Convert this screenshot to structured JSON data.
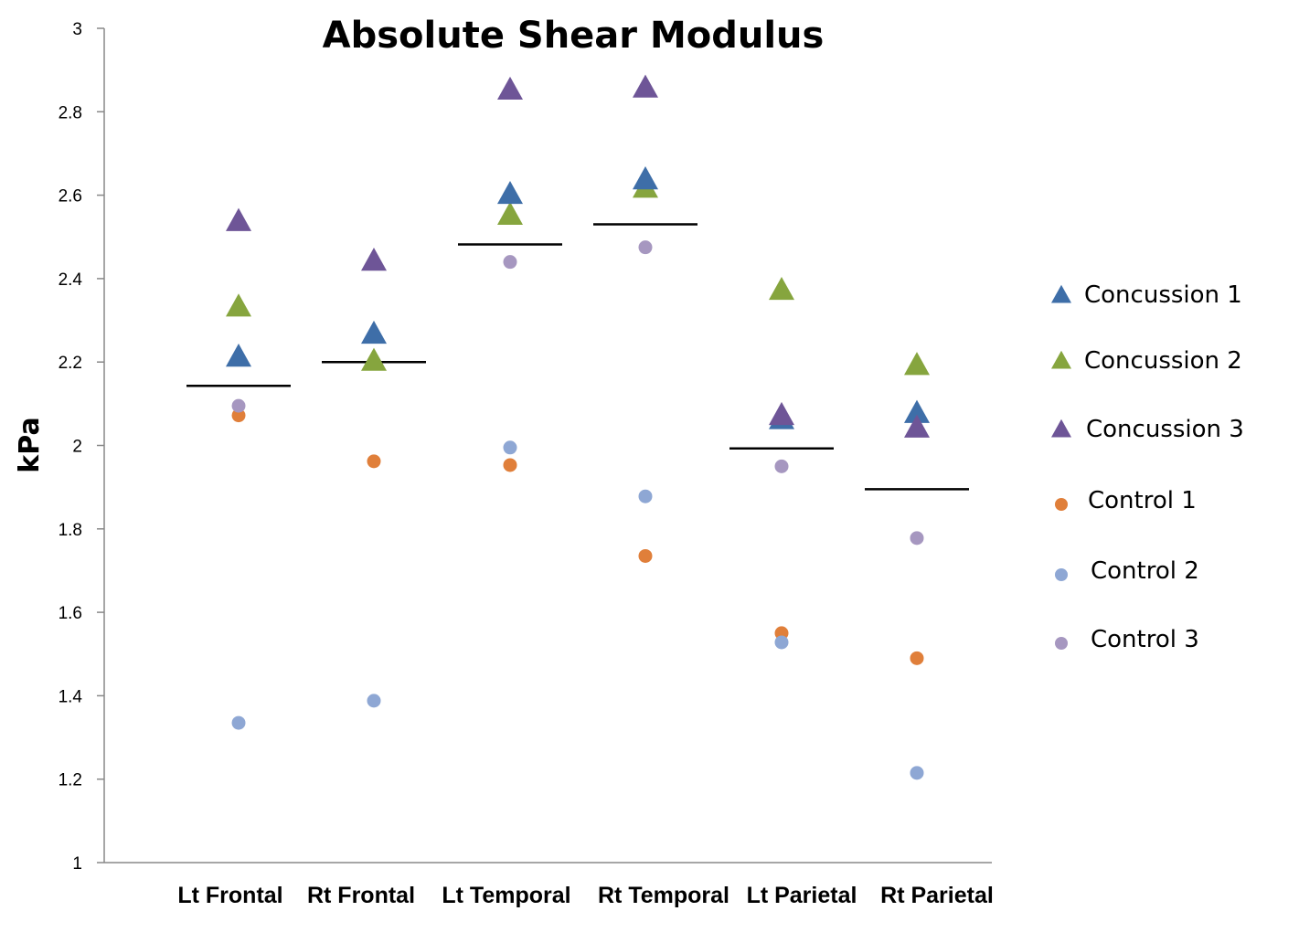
{
  "chart_data": {
    "type": "scatter",
    "title": "Absolute Shear Modulus",
    "ylabel": "kPa",
    "xlabel": "",
    "ylim": [
      1,
      3
    ],
    "y_ticks": [
      "1",
      "1.2",
      "1.4",
      "1.6",
      "1.8",
      "2",
      "2.2",
      "2.4",
      "2.6",
      "2.8",
      "3"
    ],
    "categories": [
      "Lt Frontal",
      "Rt Frontal",
      "Lt Temporal",
      "Rt Temporal",
      "Lt Parietal",
      "Rt Parietal"
    ],
    "grid": false,
    "legend_position": "right",
    "series": [
      {
        "name": "Concussion 1",
        "marker": "triangle",
        "color": "#3E6EA8",
        "values": [
          2.21,
          2.265,
          2.6,
          2.635,
          2.06,
          2.075
        ]
      },
      {
        "name": "Concussion 2",
        "marker": "triangle",
        "color": "#86A53E",
        "values": [
          2.33,
          2.2,
          2.55,
          2.615,
          2.37,
          2.19
        ]
      },
      {
        "name": "Concussion 3",
        "marker": "triangle",
        "color": "#6E5597",
        "values": [
          2.535,
          2.44,
          2.85,
          2.855,
          2.07,
          2.04
        ]
      },
      {
        "name": "Control 1",
        "marker": "circle",
        "color": "#E07F3A",
        "values": [
          2.072,
          1.962,
          1.953,
          1.735,
          1.55,
          1.49
        ]
      },
      {
        "name": "Control 2",
        "marker": "circle",
        "color": "#8EA7D4",
        "values": [
          1.335,
          1.388,
          1.995,
          1.878,
          1.528,
          1.215
        ]
      },
      {
        "name": "Control 3",
        "marker": "circle",
        "color": "#A697C0",
        "values": [
          2.095,
          2.2,
          2.44,
          2.475,
          1.95,
          1.778
        ]
      }
    ],
    "mean_lines": [
      2.143,
      2.2,
      2.482,
      2.53,
      1.993,
      1.895
    ]
  }
}
